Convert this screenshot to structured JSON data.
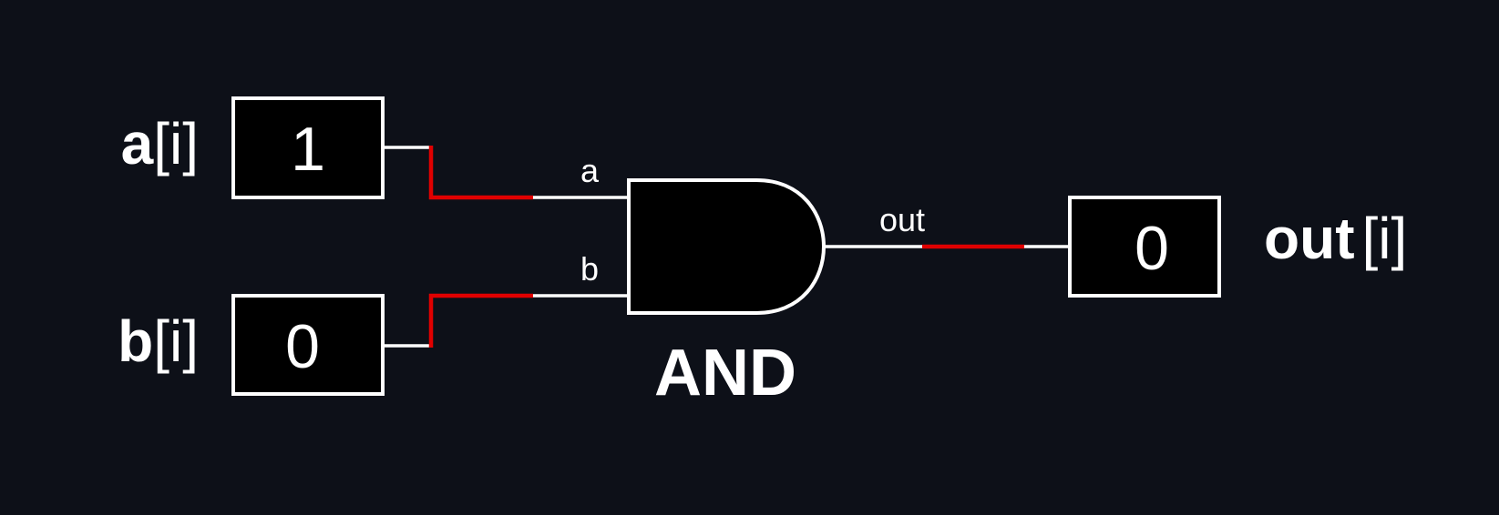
{
  "inputs": {
    "a": {
      "name": "a",
      "index_text": "[i]",
      "value": "1"
    },
    "b": {
      "name": "b",
      "index_text": "[i]",
      "value": "0"
    }
  },
  "gate": {
    "type": "AND",
    "pin_a": "a",
    "pin_b": "b",
    "pin_out": "out"
  },
  "output": {
    "name": "out",
    "index_text": "[i]",
    "value": "0"
  },
  "colors": {
    "background": "#0d1018",
    "box_fill": "#000000",
    "stroke": "#ffffff",
    "active_wire": "#e00000"
  }
}
